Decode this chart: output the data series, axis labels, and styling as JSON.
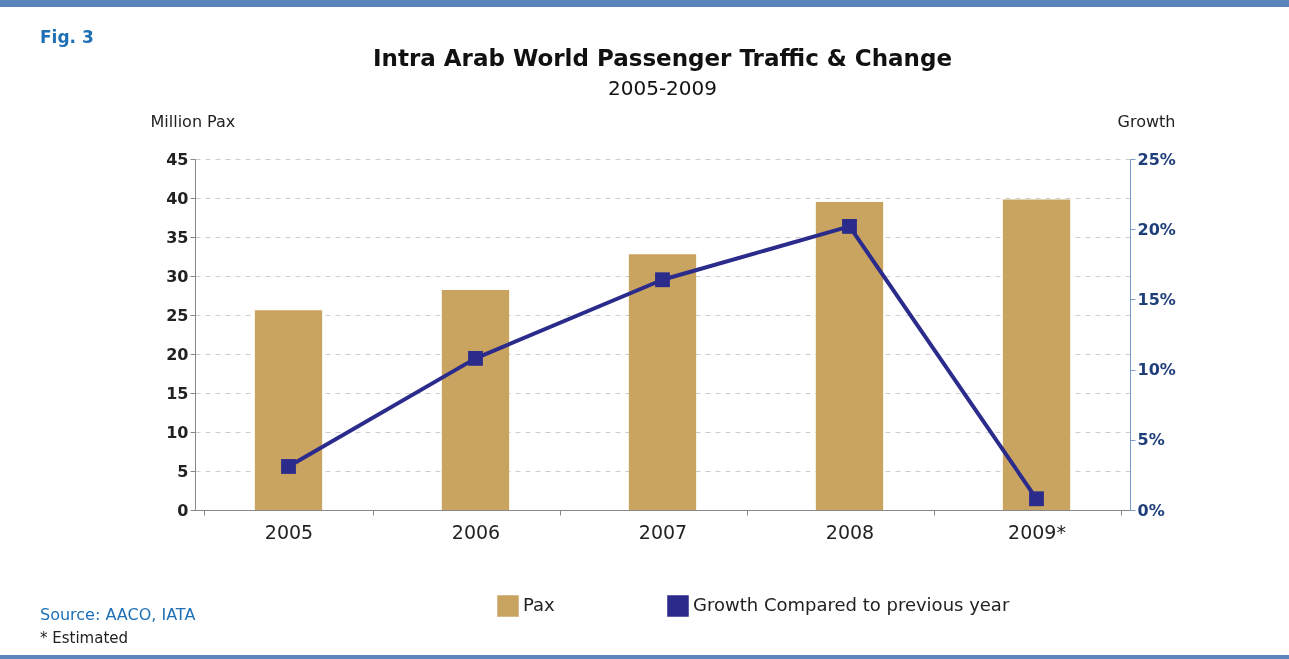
{
  "chart_data": {
    "type": "bar",
    "title": "Intra Arab World Passenger Traffic & Change",
    "subtitle": "2005-2009",
    "ylabel": "Million Pax",
    "y2label": "Growth",
    "categories": [
      "2005",
      "2006",
      "2007",
      "2008",
      "2009*"
    ],
    "series": [
      {
        "name": "Pax",
        "color": "#c9a461",
        "values": [
          25.6,
          28.2,
          32.8,
          39.5,
          39.8
        ]
      },
      {
        "name": "Growth Compared to previous year",
        "type": "line",
        "axis": "y2",
        "color": "#2b2b8c",
        "values": [
          3.1,
          10.8,
          16.4,
          20.2,
          0.8
        ]
      }
    ],
    "ylim": [
      0,
      45
    ],
    "yticks": [
      0,
      5,
      10,
      15,
      20,
      25,
      30,
      35,
      40,
      45
    ],
    "y2lim": [
      0,
      25
    ],
    "y2ticks": [
      {
        "value": 0,
        "label": "0%"
      },
      {
        "value": 5,
        "label": "5%"
      },
      {
        "value": 10,
        "label": "10%"
      },
      {
        "value": 15,
        "label": "15%"
      },
      {
        "value": 20,
        "label": "20%"
      },
      {
        "value": 25,
        "label": "25%"
      }
    ],
    "grid": "y",
    "legend": "bottom",
    "marker": "square",
    "line_style": "solid",
    "annotations": [
      "Fig. 3",
      "Source: AACO, IATA",
      "* Estimated"
    ]
  }
}
